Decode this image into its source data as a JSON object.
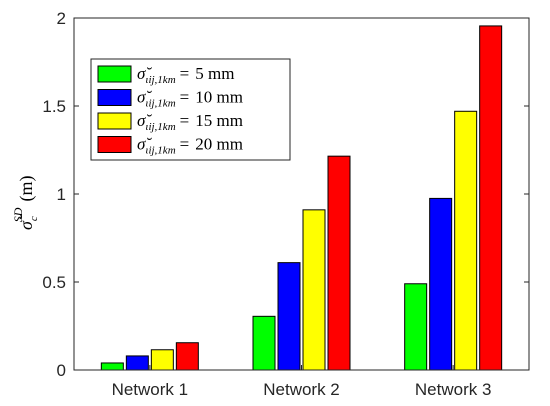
{
  "chart_data": {
    "type": "bar",
    "categories": [
      "Network 1",
      "Network 2",
      "Network 3"
    ],
    "series": [
      {
        "name": "5 mm",
        "color": "#00ff00",
        "values": [
          0.04,
          0.305,
          0.49
        ]
      },
      {
        "name": "10 mm",
        "color": "#0000ff",
        "values": [
          0.08,
          0.61,
          0.975
        ]
      },
      {
        "name": "15 mm",
        "color": "#ffff00",
        "values": [
          0.115,
          0.91,
          1.47
        ]
      },
      {
        "name": "20 mm",
        "color": "#ff0000",
        "values": [
          0.155,
          1.215,
          1.955
        ]
      }
    ],
    "legend_prefix": "σ̆",
    "legend_subscript": "ιij,1km",
    "legend_equals": "=",
    "ylabel_symbol": "σ̆",
    "ylabel_superscript": "SD",
    "ylabel_subscript": "c",
    "ylabel_unit": "(m)",
    "yticks": [
      "0",
      "0.5",
      "1",
      "1.5",
      "2"
    ],
    "ylim": [
      0,
      2
    ],
    "grid": false,
    "legend_position": "top-left"
  }
}
